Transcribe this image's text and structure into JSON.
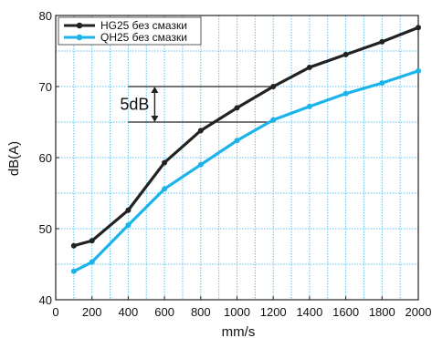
{
  "chart_data": {
    "type": "line",
    "xlabel": "mm/s",
    "ylabel": "dB(A)",
    "xlim": [
      0,
      2000
    ],
    "ylim": [
      40,
      80
    ],
    "xticks": [
      0,
      200,
      400,
      600,
      800,
      1000,
      1200,
      1400,
      1600,
      1800,
      2000
    ],
    "yticks": [
      40,
      50,
      60,
      70,
      80
    ],
    "grid": true,
    "legend_position": "top-left",
    "series": [
      {
        "name": "HG25 без смазки",
        "color": "#222222",
        "x": [
          100,
          200,
          400,
          600,
          800,
          1000,
          1200,
          1400,
          1600,
          1800,
          2000
        ],
        "y": [
          47.6,
          48.3,
          52.6,
          59.3,
          63.8,
          67.0,
          70.0,
          72.7,
          74.5,
          76.3,
          78.3
        ]
      },
      {
        "name": "QH25 без смазки",
        "color": "#1bb4ea",
        "x": [
          100,
          200,
          400,
          600,
          800,
          1000,
          1200,
          1400,
          1600,
          1800,
          2000
        ],
        "y": [
          44.0,
          45.3,
          50.5,
          55.6,
          59.0,
          62.4,
          65.3,
          67.2,
          69.0,
          70.5,
          72.2
        ]
      }
    ],
    "annotations": [
      {
        "text": "5dB",
        "x_range": [
          400,
          1200
        ],
        "y_top": 70,
        "y_bottom": 65
      }
    ]
  }
}
